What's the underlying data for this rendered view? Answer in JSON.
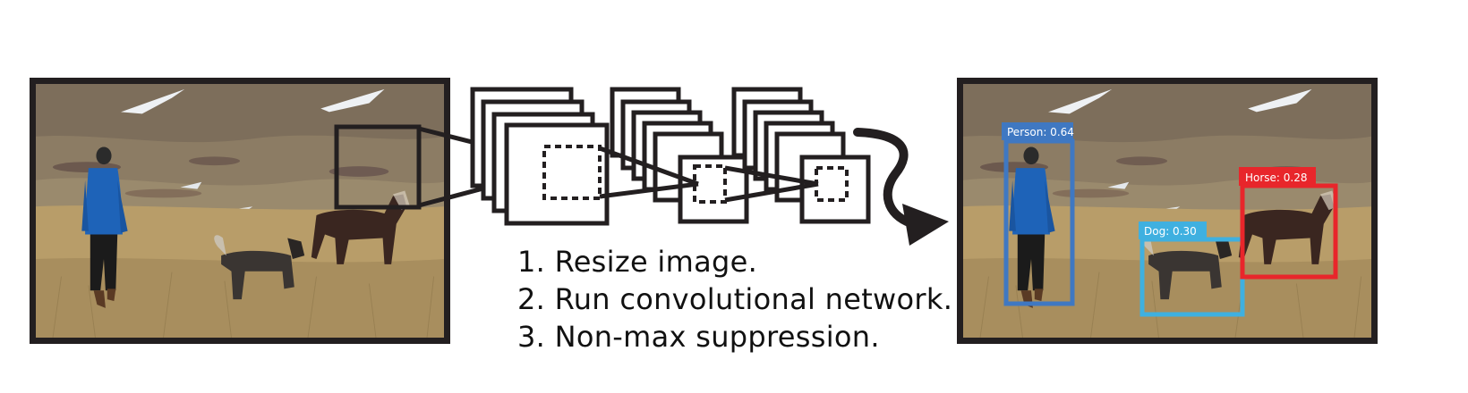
{
  "steps": [
    "1. Resize image.",
    "2. Run convolutional network.",
    "3. Non-max suppression."
  ],
  "detections": [
    {
      "label": "Person: 0.64",
      "color": "#3f78c2"
    },
    {
      "label": "Dog: 0.30",
      "color": "#3fb0e0"
    },
    {
      "label": "Horse: 0.28",
      "color": "#e8262b"
    }
  ],
  "colors": {
    "frame": "#231f20",
    "sky_snow": "#e9ecef",
    "hill": "#8a7a66",
    "field": "#b59a66",
    "jacket": "#1e63b8"
  }
}
